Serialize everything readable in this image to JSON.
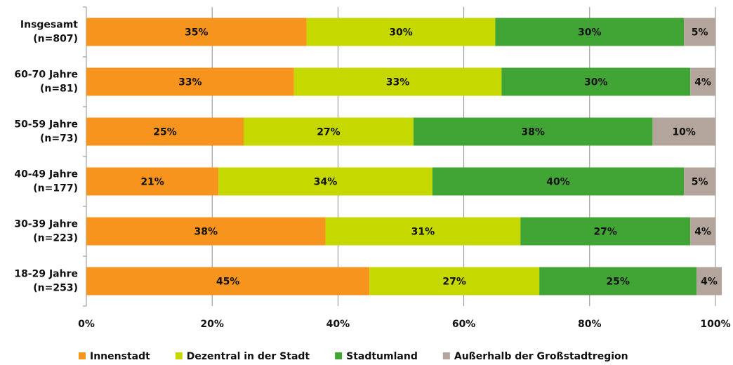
{
  "chart_data": {
    "type": "stacked-barh",
    "categories": [
      [
        "Insgesamt",
        "(n=807)"
      ],
      [
        "60-70 Jahre",
        "(n=81)"
      ],
      [
        "50-59 Jahre",
        "(n=73)"
      ],
      [
        "40-49 Jahre",
        "(n=177)"
      ],
      [
        "30-39 Jahre",
        "(n=223)"
      ],
      [
        "18-29 Jahre",
        "(n=253)"
      ]
    ],
    "series": [
      {
        "name": "Innenstadt",
        "color": "#f7941d",
        "values": [
          35,
          33,
          25,
          21,
          38,
          45
        ],
        "value_labels": [
          "35%",
          "33%",
          "25%",
          "21%",
          "38%",
          "45%"
        ]
      },
      {
        "name": "Dezentral in der Stadt",
        "color": "#c5d800",
        "values": [
          30,
          33,
          27,
          34,
          31,
          27
        ],
        "value_labels": [
          "30%",
          "33%",
          "27%",
          "34%",
          "31%",
          "27%"
        ]
      },
      {
        "name": "Stadtumland",
        "color": "#41a535",
        "values": [
          30,
          30,
          38,
          40,
          27,
          25
        ],
        "value_labels": [
          "30%",
          "30%",
          "38%",
          "40%",
          "27%",
          "25%"
        ]
      },
      {
        "name": "Außerhalb der Großstadtregion",
        "color": "#b3a59b",
        "values": [
          5,
          4,
          10,
          5,
          4,
          4
        ],
        "value_labels": [
          "5%",
          "4%",
          "10%",
          "5%",
          "4%",
          "4%"
        ]
      }
    ],
    "xlim": [
      0,
      100
    ],
    "xticks": [
      {
        "value": 0,
        "label": "0%"
      },
      {
        "value": 20,
        "label": "20%"
      },
      {
        "value": 40,
        "label": "40%"
      },
      {
        "value": 60,
        "label": "60%"
      },
      {
        "value": 80,
        "label": "80%"
      },
      {
        "value": 100,
        "label": "100%"
      }
    ],
    "grid": true,
    "legend": "bottom"
  }
}
